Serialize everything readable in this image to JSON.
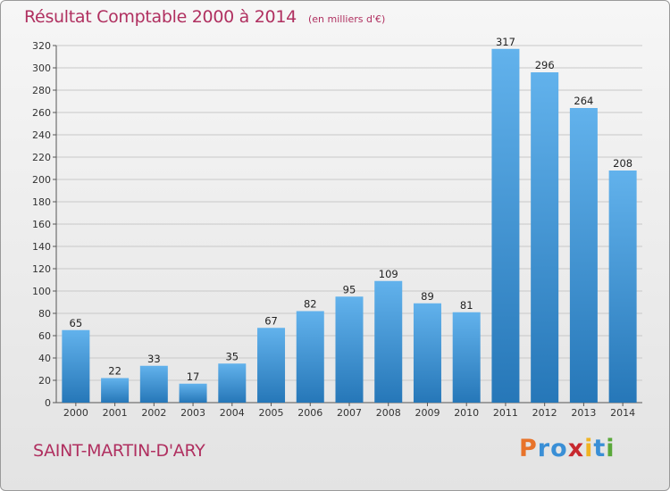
{
  "chart_data": {
    "type": "bar",
    "title": "Résultat Comptable 2000 à 2014",
    "subtitle": "(en milliers d'€)",
    "categories": [
      "2000",
      "2001",
      "2002",
      "2003",
      "2004",
      "2005",
      "2006",
      "2007",
      "2008",
      "2009",
      "2010",
      "2011",
      "2012",
      "2013",
      "2014"
    ],
    "values": [
      65,
      22,
      33,
      17,
      35,
      67,
      82,
      95,
      109,
      89,
      81,
      317,
      296,
      264,
      208
    ],
    "ylim": [
      0,
      320
    ],
    "yticks": [
      0,
      20,
      40,
      60,
      80,
      100,
      120,
      140,
      160,
      180,
      200,
      220,
      240,
      260,
      280,
      300,
      320
    ],
    "grid": true,
    "bar_color": "#3a8fd6"
  },
  "place": "SAINT-MARTIN-D'ARY",
  "brand": {
    "letters": [
      "P",
      "r",
      "o",
      "x",
      "i",
      "t",
      "i"
    ],
    "colors": [
      "#e8732a",
      "#3a8fd6",
      "#3a8fd6",
      "#c7282e",
      "#f0b323",
      "#3a8fd6",
      "#5aa83a"
    ]
  }
}
